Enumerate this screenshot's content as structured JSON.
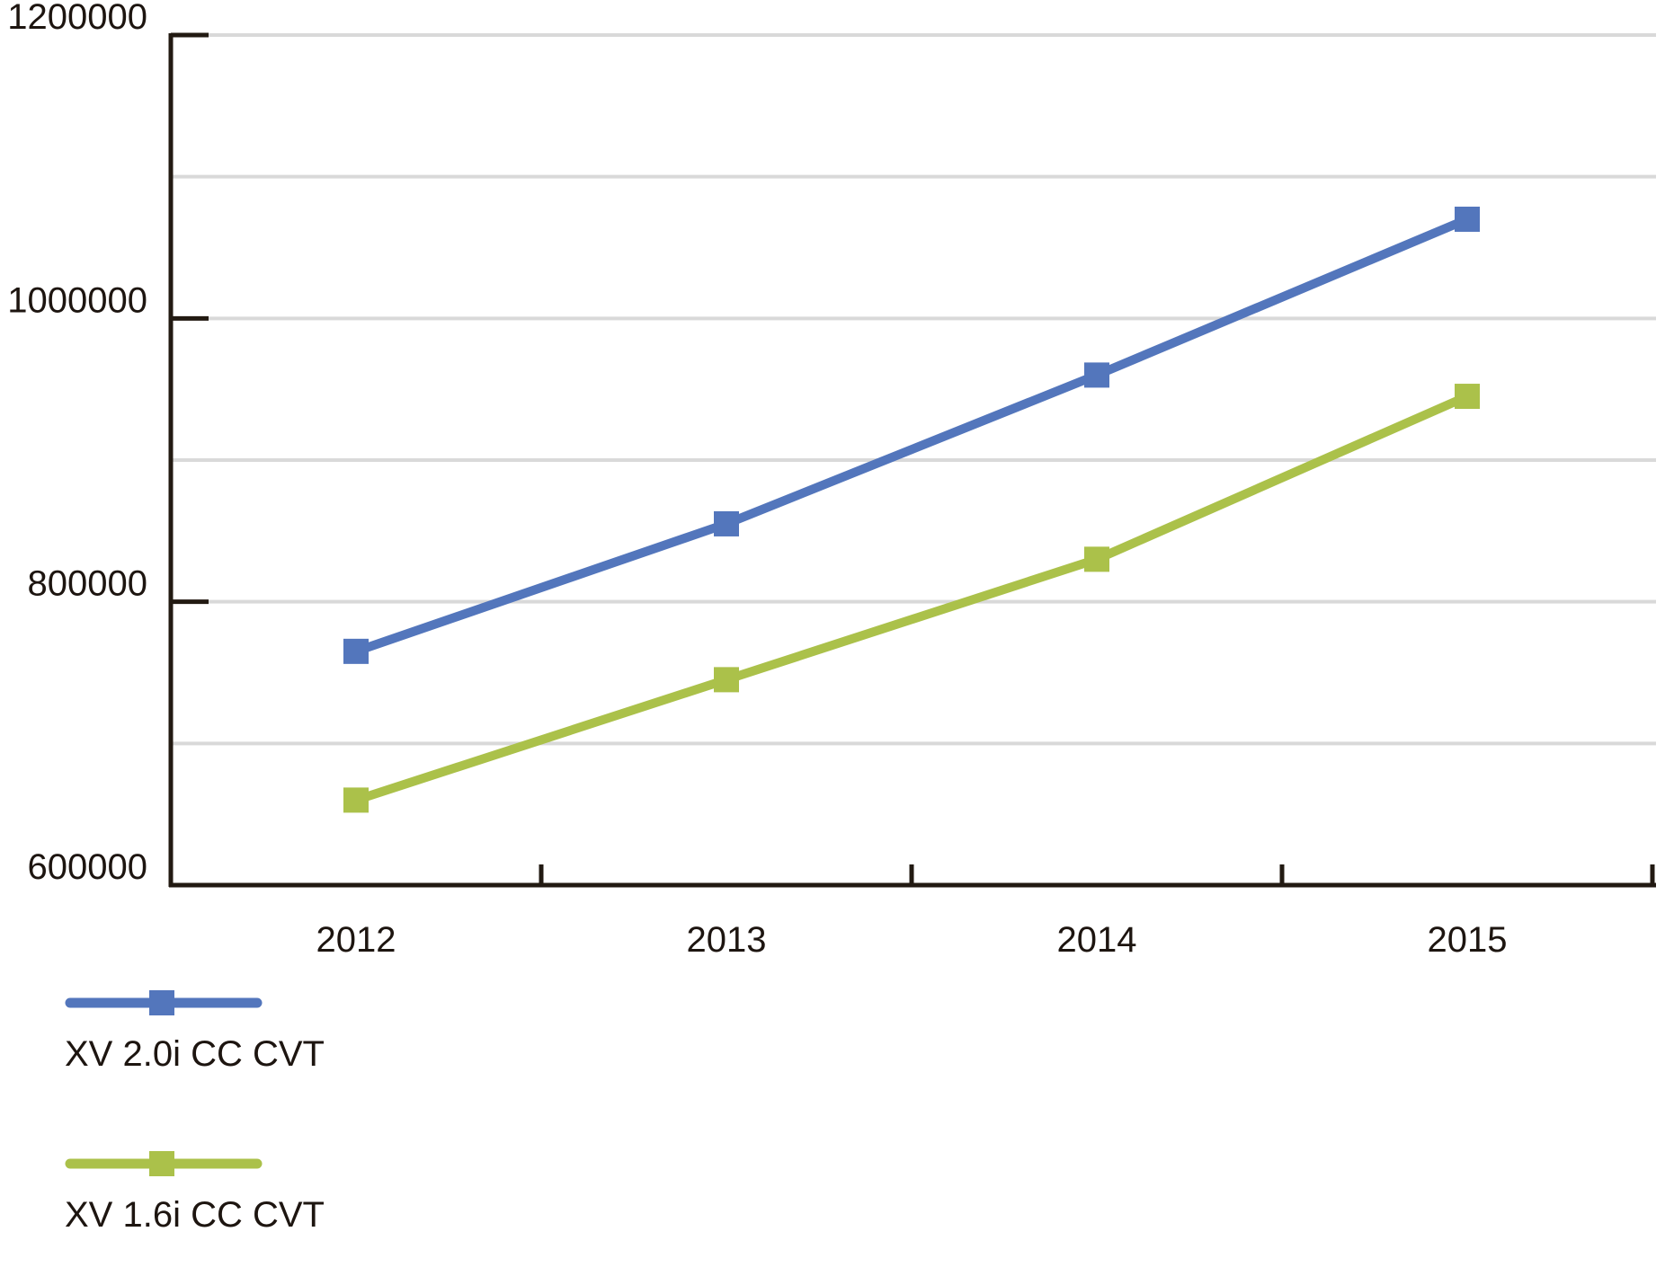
{
  "chart_data": {
    "type": "line",
    "title": "",
    "xlabel": "",
    "ylabel": "",
    "categories": [
      "2012",
      "2013",
      "2014",
      "2015"
    ],
    "series": [
      {
        "name": "XV 2.0i CC CVT",
        "color": "#5376bc",
        "marker": "square",
        "values": [
          765000,
          855000,
          960000,
          1070000
        ]
      },
      {
        "name": "XV 1.6i CC CVT",
        "color": "#abc14a",
        "marker": "square",
        "values": [
          660000,
          745000,
          830000,
          945000
        ]
      }
    ],
    "ylim": [
      600000,
      1200000
    ],
    "y_tick_labels": [
      600000,
      800000,
      1000000,
      1200000
    ],
    "y_gridline_step": 100000,
    "grid": true,
    "legend_position": "bottom-left",
    "colors": {
      "gridline": "#d9d9d9",
      "axis": "#221a12",
      "text": "#1d1510",
      "background": "#ffffff"
    }
  }
}
